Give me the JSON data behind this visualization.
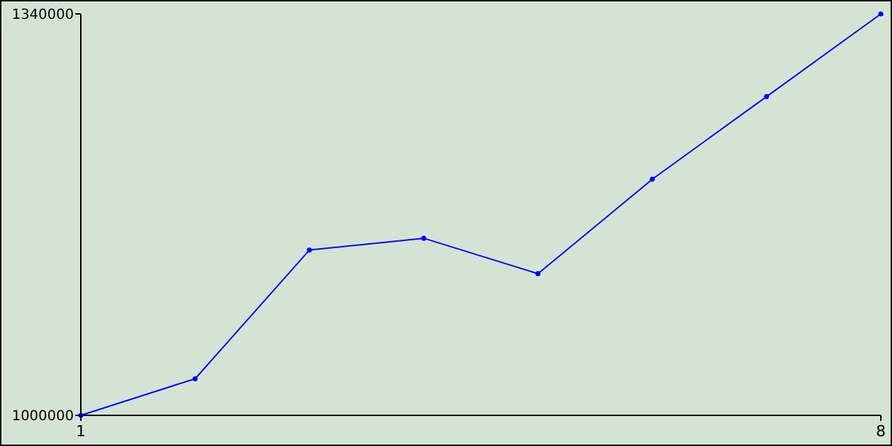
{
  "chart_data": {
    "type": "line",
    "x": [
      1,
      2,
      3,
      4,
      5,
      6,
      7,
      8
    ],
    "series": [
      {
        "color": "#0000ff",
        "values": [
          1000000,
          1031000,
          1140000,
          1150000,
          1120000,
          1200000,
          1270000,
          1340000
        ]
      }
    ],
    "xlim": [
      1,
      8
    ],
    "xticks": [
      1,
      8
    ],
    "ylim": [
      1000000,
      1340000
    ],
    "yticks": [
      1000000,
      1340000
    ],
    "marker": "circle",
    "grid": false
  }
}
